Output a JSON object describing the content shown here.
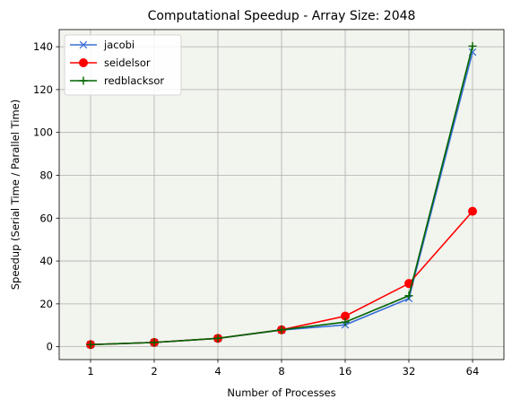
{
  "chart_data": {
    "type": "line",
    "title": "Computational Speedup - Array Size: 2048",
    "xlabel": "Number of Processes",
    "ylabel": "Speedup (Serial Time / Parallel Time)",
    "x_scale": "log2",
    "categories": [
      "1",
      "2",
      "4",
      "8",
      "16",
      "32",
      "64"
    ],
    "x": [
      1,
      2,
      4,
      8,
      16,
      32,
      64
    ],
    "ylim": [
      -6,
      148
    ],
    "yticks": [
      0,
      20,
      40,
      60,
      80,
      100,
      120,
      140
    ],
    "grid": true,
    "legend_position": "top-left",
    "plot_background": "#f2f4ee",
    "series": [
      {
        "name": "jacobi",
        "color": "#3a6fd8",
        "marker": "x",
        "values": [
          1.0,
          2.0,
          3.9,
          7.8,
          10.2,
          22.5,
          137.5
        ]
      },
      {
        "name": "seidelsor",
        "color": "#ff0000",
        "marker": "circle",
        "values": [
          1.0,
          2.0,
          3.9,
          7.9,
          14.3,
          29.5,
          63.2
        ]
      },
      {
        "name": "redblacksor",
        "color": "#006400",
        "marker": "plus",
        "values": [
          1.0,
          2.0,
          3.9,
          7.9,
          11.5,
          23.8,
          140.3
        ]
      }
    ]
  }
}
